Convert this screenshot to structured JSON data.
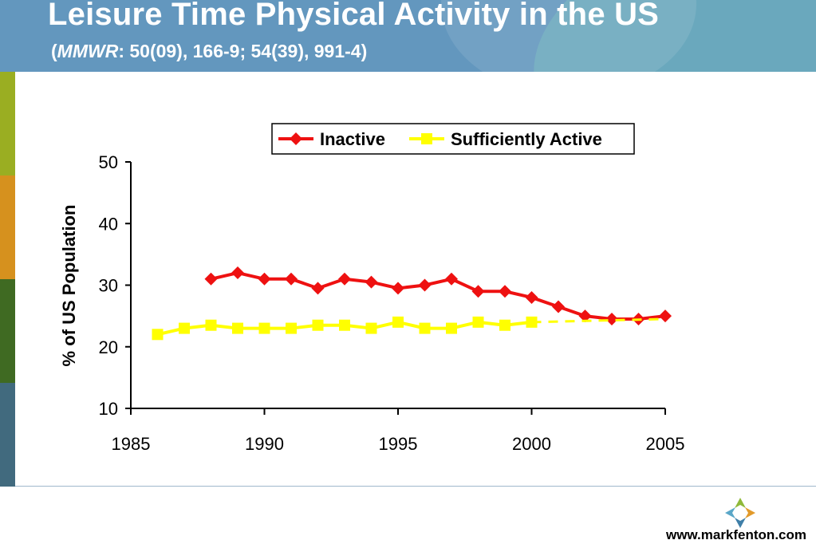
{
  "header": {
    "title": "Leisure Time Physical Activity in the US",
    "subtitle_source": "MMWR",
    "subtitle_rest": ": 50(09), 166-9; 54(39), 991-4)"
  },
  "colors": {
    "header_bg": "#6397be",
    "inactive": "#ee1111",
    "sufficiently_active": "#ffff00",
    "sidebar": [
      "#9aae22",
      "#d6911e",
      "#3f6a22",
      "#416a7e"
    ]
  },
  "footer": {
    "url": "www.markfenton.com",
    "logo_icon": "markfenton-logo-icon"
  },
  "chart_data": {
    "type": "line",
    "ylabel": "% of US Population",
    "xlabel": "",
    "xlim": [
      1985,
      2005
    ],
    "ylim": [
      10,
      50
    ],
    "x_ticks": [
      1985,
      1990,
      1995,
      2000,
      2005
    ],
    "y_ticks": [
      10,
      20,
      30,
      40,
      50
    ],
    "legend_position": "top-center",
    "series": [
      {
        "name": "Inactive",
        "color": "#ee1111",
        "marker": "diamond",
        "x": [
          1988,
          1989,
          1990,
          1991,
          1992,
          1993,
          1994,
          1995,
          1996,
          1997,
          1998,
          1999,
          2000,
          2001,
          2002,
          2003,
          2004,
          2005
        ],
        "values": [
          31,
          32,
          31,
          31,
          29.5,
          31,
          30.5,
          29.5,
          30,
          31,
          29,
          29,
          28,
          26.5,
          25,
          24.5,
          24.5,
          25
        ]
      },
      {
        "name": "Sufficiently Active",
        "color": "#ffff00",
        "marker": "square",
        "x": [
          1986,
          1987,
          1988,
          1989,
          1990,
          1991,
          1992,
          1993,
          1994,
          1995,
          1996,
          1997,
          1998,
          1999,
          2000
        ],
        "values": [
          22,
          23,
          23.5,
          23,
          23,
          23,
          23.5,
          23.5,
          23,
          24,
          23,
          23,
          24,
          23.5,
          24
        ],
        "projection": {
          "x": [
            2000,
            2005
          ],
          "values": [
            24,
            24.5
          ],
          "style": "dashed"
        }
      }
    ]
  }
}
